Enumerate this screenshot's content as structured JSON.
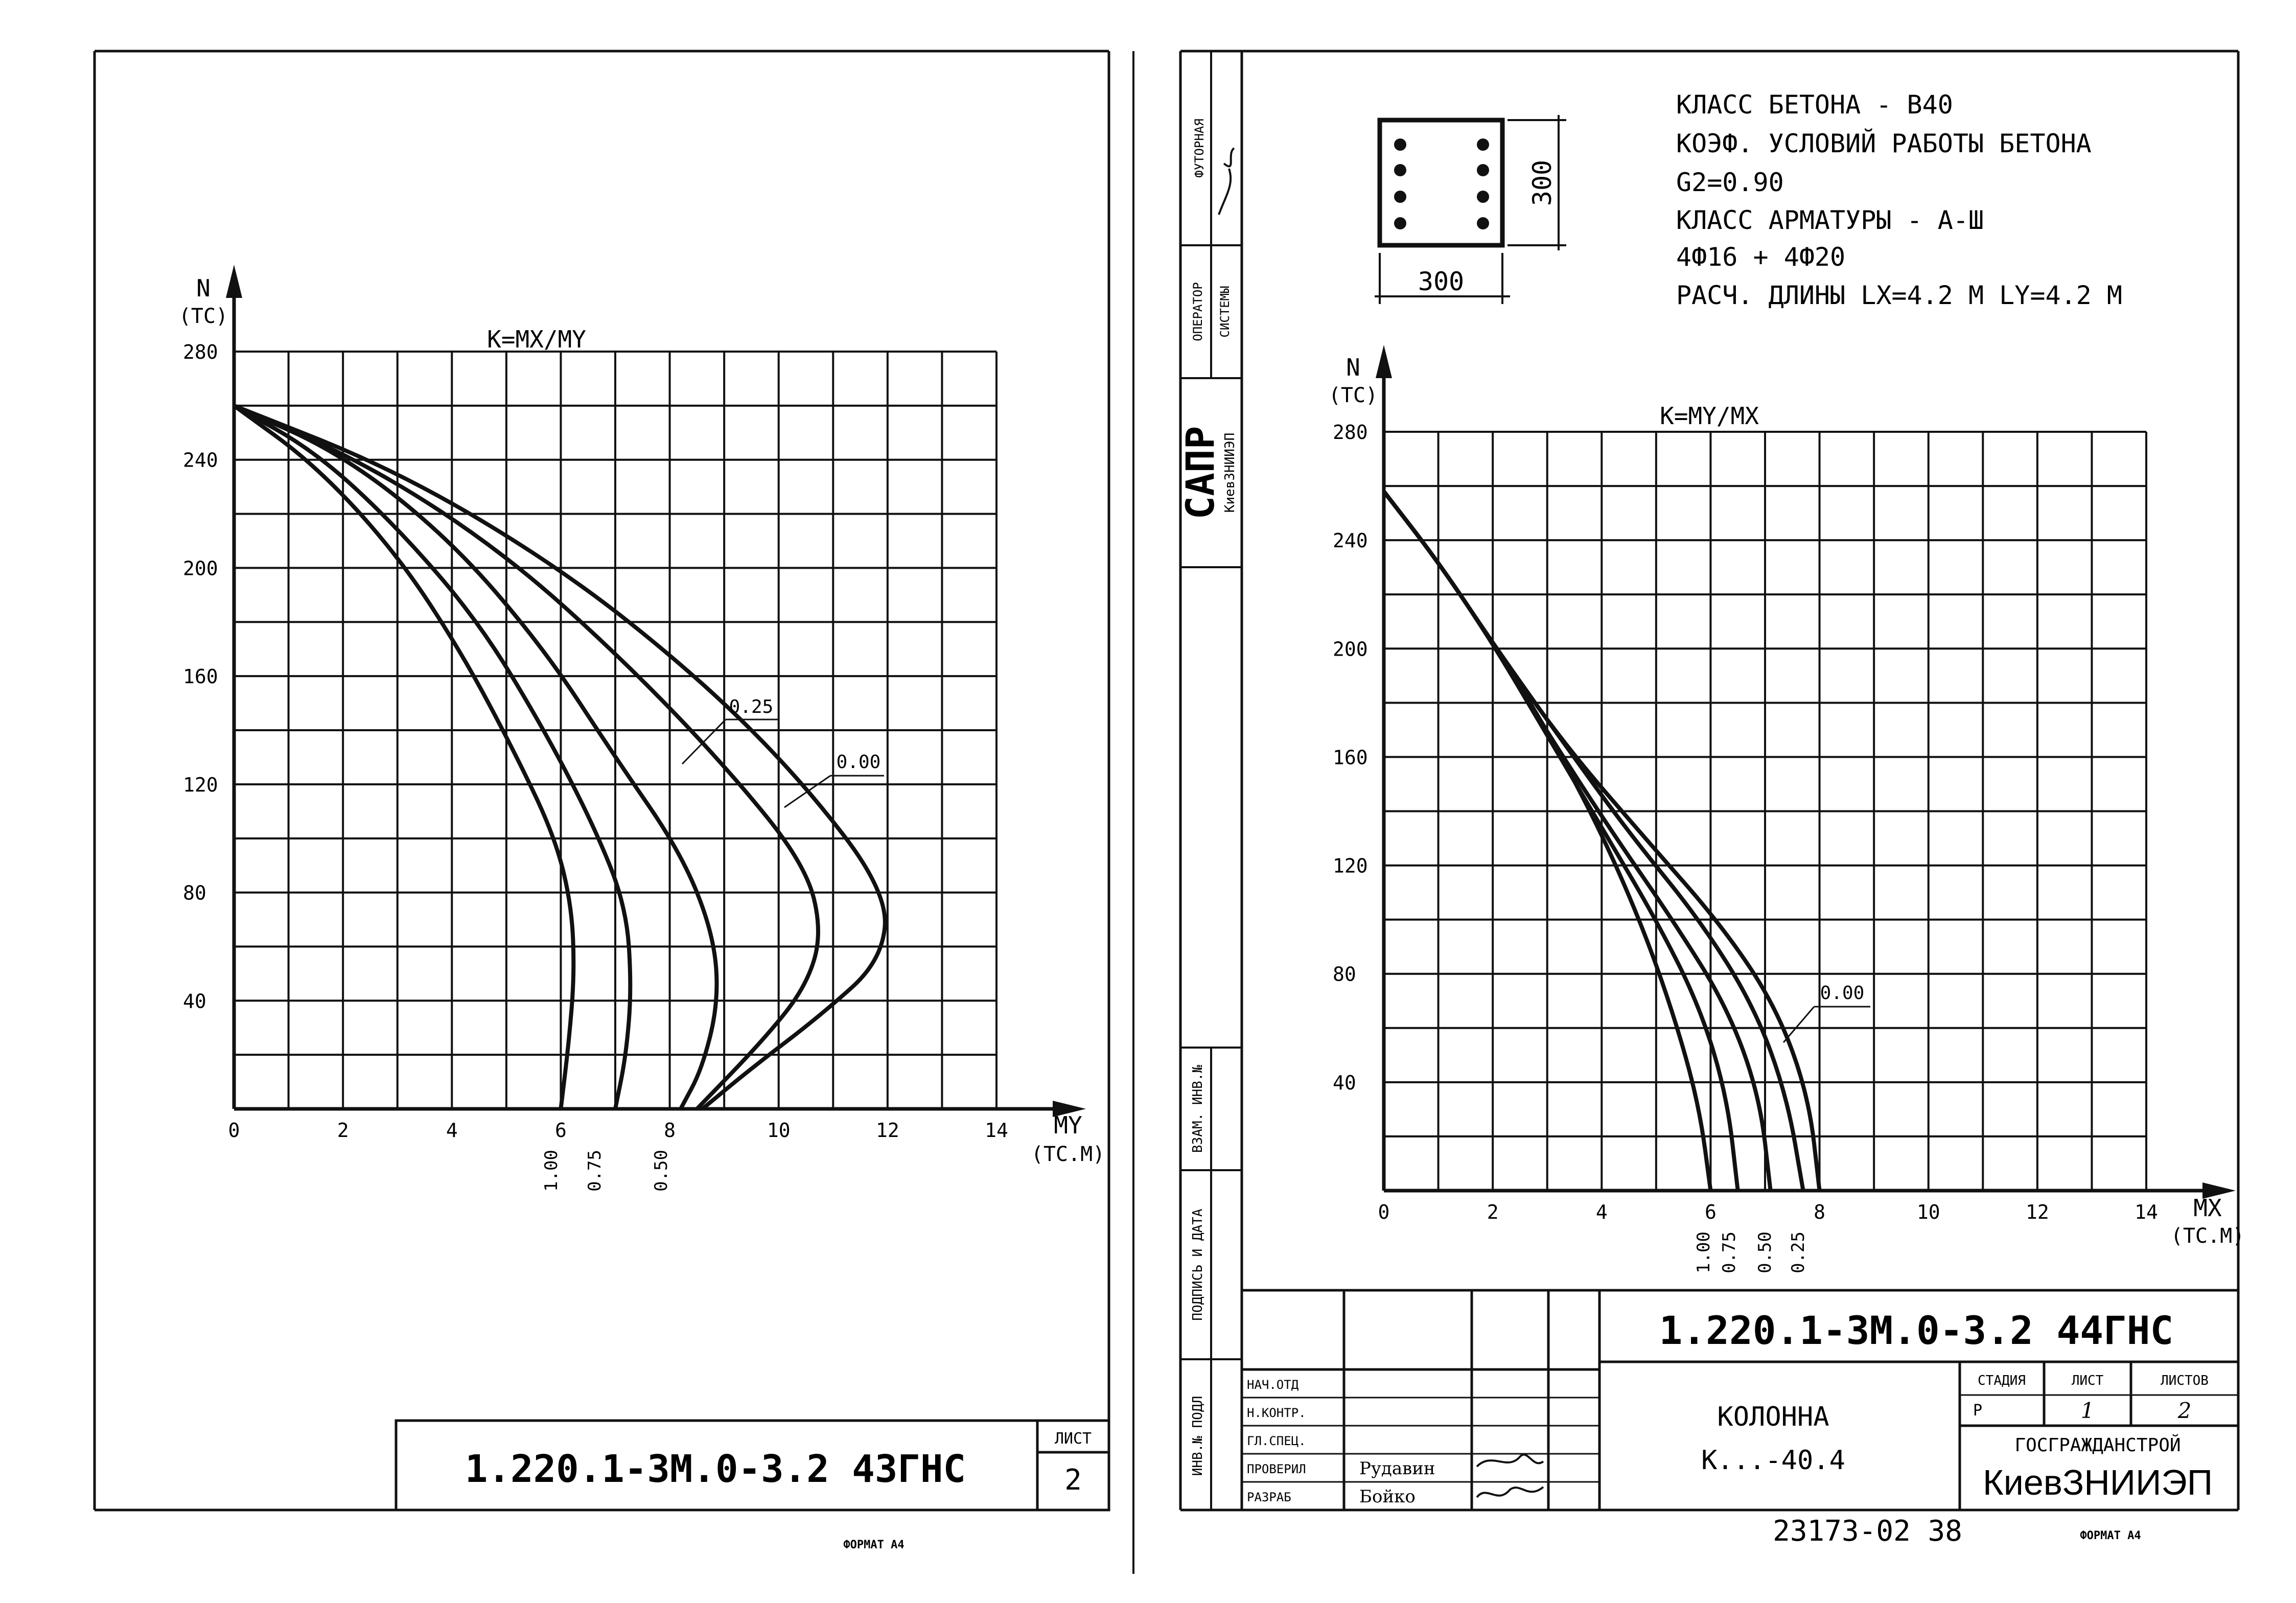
{
  "chart_data": [
    {
      "type": "line",
      "title": "K=MX/MY",
      "ylabel": "N",
      "yunit": "(TC)",
      "xlabel": "MY",
      "xunit": "(TC.M)",
      "xlim": [
        0,
        14
      ],
      "ylim": [
        0,
        280
      ],
      "xticks": [
        "0",
        "2",
        "4",
        "6",
        "8",
        "10",
        "12",
        "14"
      ],
      "yticks": [
        "40",
        "80",
        "120",
        "160",
        "200",
        "240",
        "280"
      ],
      "grid": true,
      "annotations": [
        "0.25",
        "0.00"
      ],
      "bottom_labels": [
        "1.00",
        "0.75",
        "0.50"
      ],
      "series": [
        {
          "name": "1.00",
          "points": [
            [
              0,
              260
            ],
            [
              1.5,
              238
            ],
            [
              3,
              205
            ],
            [
              4.2,
              168
            ],
            [
              5.2,
              130
            ],
            [
              5.9,
              100
            ],
            [
              6.2,
              75
            ],
            [
              6.25,
              50
            ],
            [
              6.15,
              25
            ],
            [
              6,
              0
            ]
          ]
        },
        {
          "name": "0.75",
          "points": [
            [
              0,
              260
            ],
            [
              1.5,
              243
            ],
            [
              3,
              215
            ],
            [
              4.5,
              180
            ],
            [
              5.7,
              140
            ],
            [
              6.6,
              105
            ],
            [
              7.2,
              75
            ],
            [
              7.3,
              45
            ],
            [
              7.2,
              20
            ],
            [
              7,
              0
            ]
          ]
        },
        {
          "name": "0.50",
          "points": [
            [
              0,
              260
            ],
            [
              2,
              242
            ],
            [
              4,
              210
            ],
            [
              5.7,
              170
            ],
            [
              7,
              130
            ],
            [
              8.2,
              95
            ],
            [
              8.8,
              65
            ],
            [
              8.9,
              40
            ],
            [
              8.6,
              15
            ],
            [
              8.2,
              0
            ]
          ]
        },
        {
          "name": "0.25",
          "points": [
            [
              0,
              260
            ],
            [
              2.5,
              238
            ],
            [
              5,
              205
            ],
            [
              7.2,
              165
            ],
            [
              9.1,
              125
            ],
            [
              10.5,
              90
            ],
            [
              10.8,
              65
            ],
            [
              10.5,
              45
            ],
            [
              9.7,
              25
            ],
            [
              8.5,
              0
            ]
          ]
        },
        {
          "name": "0.00",
          "points": [
            [
              0,
              260
            ],
            [
              3,
              236
            ],
            [
              6,
              200
            ],
            [
              8.5,
              160
            ],
            [
              10.4,
              122
            ],
            [
              12,
              80
            ],
            [
              11.9,
              55
            ],
            [
              10.8,
              35
            ],
            [
              9.5,
              15
            ],
            [
              8.6,
              0
            ]
          ]
        }
      ]
    },
    {
      "type": "line",
      "title": "K=MY/MX",
      "ylabel": "N",
      "yunit": "(TC)",
      "xlabel": "MX",
      "xunit": "(TC.M)",
      "xlim": [
        0,
        14
      ],
      "ylim": [
        0,
        280
      ],
      "xticks": [
        "0",
        "2",
        "4",
        "6",
        "8",
        "10",
        "12",
        "14"
      ],
      "yticks": [
        "40",
        "80",
        "120",
        "160",
        "200",
        "240",
        "280"
      ],
      "grid": true,
      "annotations": [
        "0.00"
      ],
      "bottom_labels": [
        "1.00",
        "0.75",
        "0.50",
        "0.25"
      ],
      "series": [
        {
          "name": "1.00",
          "points": [
            [
              0,
              258
            ],
            [
              1,
              232
            ],
            [
              2,
              202
            ],
            [
              3,
              170
            ],
            [
              4,
              132
            ],
            [
              4.8,
              95
            ],
            [
              5.4,
              60
            ],
            [
              5.8,
              30
            ],
            [
              6,
              0
            ]
          ]
        },
        {
          "name": "0.75",
          "points": [
            [
              0,
              258
            ],
            [
              1,
              232
            ],
            [
              2,
              202
            ],
            [
              3,
              168
            ],
            [
              4,
              134
            ],
            [
              5,
              100
            ],
            [
              5.8,
              68
            ],
            [
              6.3,
              35
            ],
            [
              6.5,
              0
            ]
          ]
        },
        {
          "name": "0.50",
          "points": [
            [
              0,
              258
            ],
            [
              1,
              232
            ],
            [
              2,
              202
            ],
            [
              3.1,
              166
            ],
            [
              4.2,
              132
            ],
            [
              5.3,
              100
            ],
            [
              6.3,
              68
            ],
            [
              6.9,
              35
            ],
            [
              7.1,
              0
            ]
          ]
        },
        {
          "name": "0.25",
          "points": [
            [
              0,
              258
            ],
            [
              1,
              232
            ],
            [
              2,
              202
            ],
            [
              3.2,
              168
            ],
            [
              4.5,
              132
            ],
            [
              5.8,
              100
            ],
            [
              6.8,
              68
            ],
            [
              7.4,
              35
            ],
            [
              7.7,
              0
            ]
          ]
        },
        {
          "name": "0.00",
          "points": [
            [
              0,
              258
            ],
            [
              1,
              232
            ],
            [
              2,
              202
            ],
            [
              3.3,
              165
            ],
            [
              4.8,
              130
            ],
            [
              6.2,
              98
            ],
            [
              7.2,
              68
            ],
            [
              7.8,
              35
            ],
            [
              8,
              0
            ]
          ]
        }
      ]
    }
  ],
  "section": {
    "title_lines": [
      "КЛАСС БЕТОНА - В40",
      "КОЭФ. УСЛОВИЙ РАБОТЫ БЕТОНА",
      "G2=0.90",
      "КЛАСС АРМАТУРЫ - А-Ш",
      "4Ф16 + 4Ф20",
      "РАСЧ. ДЛИНЫ  LX=4.2 M  LY=4.2 M"
    ],
    "dim_width": "300",
    "dim_height": "300"
  },
  "left_sheet": {
    "code": "1.220.1-3М.0-3.2 43ГНС",
    "sheet_label": "ЛИСТ",
    "sheet_no": "2",
    "format": "ФОРМАТ А4"
  },
  "right_sheet": {
    "code": "1.220.1-3М.0-3.2 44ГНС",
    "name": "КОЛОННА",
    "mark": "К...-40.4",
    "stage_label": "СТАДИЯ",
    "sheet_label": "ЛИСТ",
    "sheets_label": "ЛИСТОВ",
    "stage": "Р",
    "sheet": "1",
    "sheets": "2",
    "org_top": "ГОСГРАЖДАНСТРОЙ",
    "org": "КиевЗНИИЭП",
    "roles": [
      "НАЧ.ОТД",
      "Н.КОНТР.",
      "ГЛ.СПЕЦ.",
      "ПРОВЕРИЛ",
      "РАЗРАБ"
    ],
    "names": [
      "",
      "",
      "",
      "Рудавин",
      "Бойко"
    ],
    "side_cells": [
      "ФУТОРНАЯ",
      "ОПЕРАТОР",
      "СИСТЕМЫ",
      "САПР",
      "КиевЗНИИЭП",
      "ВЗАМ. ИНВ.№",
      "ПОДПИСЬ И ДАТА",
      "ИНВ.№ ПОДЛ"
    ],
    "footer_number": "23173-02 38",
    "format": "ФОРМАТ А4"
  }
}
